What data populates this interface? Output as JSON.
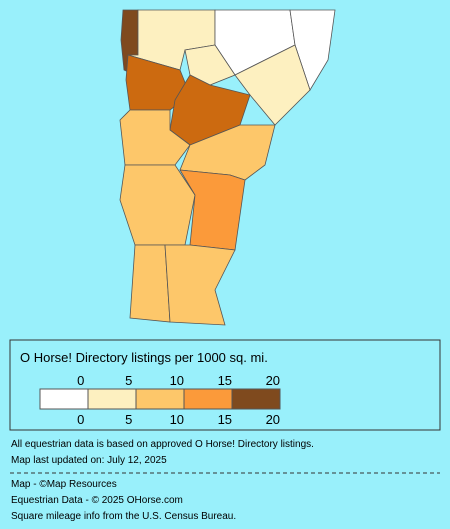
{
  "legend": {
    "title": "O Horse! Directory listings per 1000 sq. mi.",
    "top_labels": [
      0,
      5,
      10,
      15,
      20
    ],
    "bottom_labels": [
      0,
      5,
      10,
      15,
      20
    ],
    "colors": [
      "#ffffff",
      "#fdf0c0",
      "#fdc76a",
      "#fb9a3a",
      "#7f4a1e"
    ]
  },
  "notes": [
    "All equestrian data is based on approved O Horse! Directory listings.",
    "Map last updated on: July 12, 2025"
  ],
  "credits": [
    "Map - ©Map Resources",
    "Equestrian Data - © 2025 OHorse.com",
    "Square mileage info from the U.S. Census Bureau."
  ]
}
